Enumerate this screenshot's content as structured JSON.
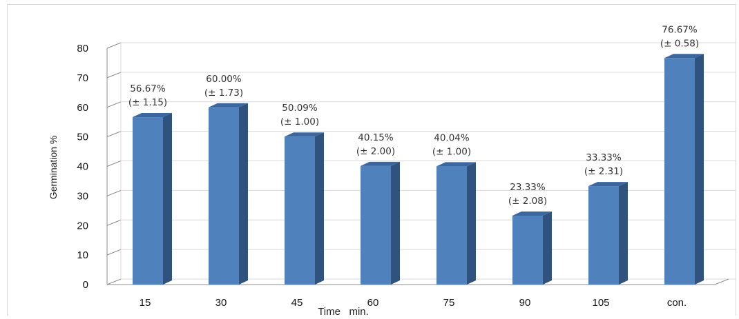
{
  "chart_data": {
    "type": "bar",
    "categories": [
      "15",
      "30",
      "45",
      "60",
      "75",
      "90",
      "105",
      "con."
    ],
    "values": [
      56.67,
      60.0,
      50.09,
      40.15,
      40.04,
      23.33,
      33.33,
      76.67
    ],
    "labels": [
      [
        "56.67%",
        "(± 1.15)"
      ],
      [
        "60.00%",
        "(± 1.73)"
      ],
      [
        "50.09%",
        "(± 1.00)"
      ],
      [
        "40.15%",
        "(± 2.00)"
      ],
      [
        "40.04%",
        "(± 1.00)"
      ],
      [
        "23.33%",
        "(± 2.08)"
      ],
      [
        "33.33%",
        "(± 2.31)"
      ],
      [
        "76.67%",
        "(± 0.58)"
      ]
    ],
    "ylabel": "Germination %",
    "xlabel": "Time   min.",
    "ylim": [
      0,
      80
    ],
    "yticks": [
      0,
      10,
      20,
      30,
      40,
      50,
      60,
      70,
      80
    ],
    "grid": true,
    "colors": {
      "front": "#4f81bd",
      "side": "#2f527e",
      "top": "#3a67a0"
    }
  }
}
